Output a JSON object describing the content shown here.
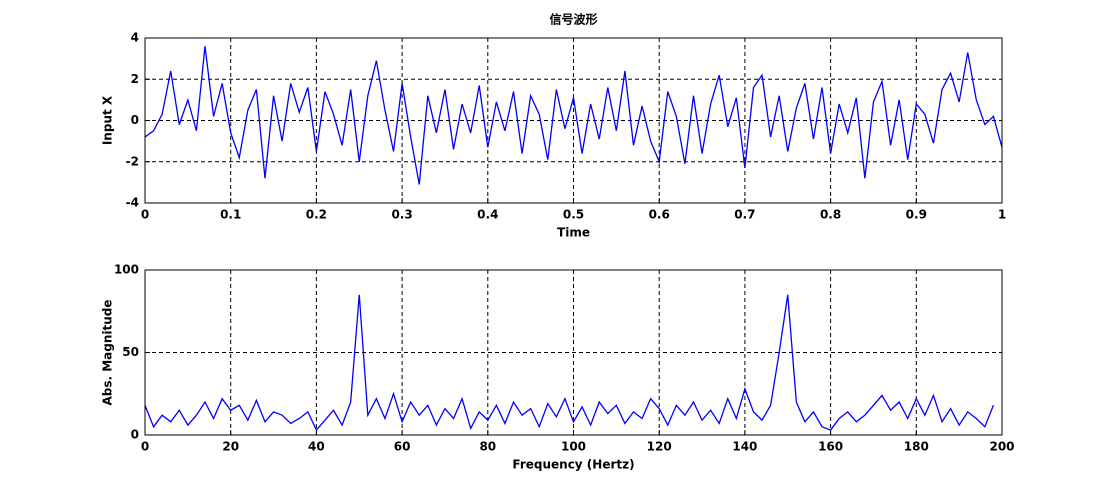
{
  "chart_data": [
    {
      "type": "line",
      "title": "信号波形",
      "xlabel": "Time",
      "ylabel": "Input X",
      "x": [
        0,
        0.01,
        0.02,
        0.03,
        0.04,
        0.05,
        0.06,
        0.07,
        0.08,
        0.09,
        0.1,
        0.11,
        0.12,
        0.13,
        0.14,
        0.15,
        0.16,
        0.17,
        0.18,
        0.19,
        0.2,
        0.21,
        0.22,
        0.23,
        0.24,
        0.25,
        0.26,
        0.27,
        0.28,
        0.29,
        0.3,
        0.31,
        0.32,
        0.33,
        0.34,
        0.35,
        0.36,
        0.37,
        0.38,
        0.39,
        0.4,
        0.41,
        0.42,
        0.43,
        0.44,
        0.45,
        0.46,
        0.47,
        0.48,
        0.49,
        0.5,
        0.51,
        0.52,
        0.53,
        0.54,
        0.55,
        0.56,
        0.57,
        0.58,
        0.59,
        0.6,
        0.61,
        0.62,
        0.63,
        0.64,
        0.65,
        0.66,
        0.67,
        0.68,
        0.69,
        0.7,
        0.71,
        0.72,
        0.73,
        0.74,
        0.75,
        0.76,
        0.77,
        0.78,
        0.79,
        0.8,
        0.81,
        0.82,
        0.83,
        0.84,
        0.85,
        0.86,
        0.87,
        0.88,
        0.89,
        0.9,
        0.91,
        0.92,
        0.93,
        0.94,
        0.95,
        0.96,
        0.97,
        0.98,
        0.99,
        1
      ],
      "series": [
        {
          "color": "#0000ff",
          "values": [
            -0.8,
            -0.5,
            0.3,
            2.4,
            -0.2,
            1.0,
            -0.5,
            3.6,
            0.2,
            1.8,
            -0.6,
            -1.8,
            0.5,
            1.5,
            -2.8,
            1.2,
            -1.0,
            1.8,
            0.4,
            1.6,
            -1.5,
            1.4,
            0.3,
            -1.2,
            1.5,
            -2.0,
            1.2,
            2.9,
            0.5,
            -1.5,
            1.8,
            -0.8,
            -3.1,
            1.2,
            -0.6,
            1.5,
            -1.4,
            0.8,
            -0.6,
            1.7,
            -1.3,
            0.9,
            -0.5,
            1.4,
            -1.6,
            1.2,
            0.3,
            -1.9,
            1.5,
            -0.4,
            1.1,
            -1.6,
            0.8,
            -0.9,
            1.6,
            -0.5,
            2.4,
            -1.2,
            0.7,
            -1.0,
            -2.0,
            1.4,
            0.2,
            -2.1,
            1.2,
            -1.6,
            0.8,
            2.2,
            -0.3,
            1.1,
            -2.3,
            1.6,
            2.2,
            -0.8,
            1.2,
            -1.5,
            0.6,
            1.8,
            -0.9,
            1.6,
            -1.6,
            0.8,
            -0.6,
            1.1,
            -2.8,
            0.9,
            1.9,
            -1.2,
            1.0,
            -1.9,
            0.8,
            0.3,
            -1.1,
            1.5,
            2.3,
            0.9,
            3.3,
            1.0,
            -0.2,
            0.2,
            -1.3
          ]
        }
      ],
      "xlim": [
        0,
        1
      ],
      "xticks": [
        0,
        0.1,
        0.2,
        0.3,
        0.4,
        0.5,
        0.6,
        0.7,
        0.8,
        0.9,
        1
      ],
      "ylim": [
        -4,
        4
      ],
      "yticks": [
        -4,
        -2,
        0,
        2,
        4
      ],
      "grid": true
    },
    {
      "type": "line",
      "xlabel": "Frequency (Hertz)",
      "ylabel": "Abs. Magnitude",
      "x": [
        0,
        2,
        4,
        6,
        8,
        10,
        12,
        14,
        16,
        18,
        20,
        22,
        24,
        26,
        28,
        30,
        32,
        34,
        36,
        38,
        40,
        42,
        44,
        46,
        48,
        50,
        52,
        54,
        56,
        58,
        60,
        62,
        64,
        66,
        68,
        70,
        72,
        74,
        76,
        78,
        80,
        82,
        84,
        86,
        88,
        90,
        92,
        94,
        96,
        98,
        100,
        102,
        104,
        106,
        108,
        110,
        112,
        114,
        116,
        118,
        120,
        122,
        124,
        126,
        128,
        130,
        132,
        134,
        136,
        138,
        140,
        142,
        144,
        146,
        148,
        150,
        152,
        154,
        156,
        158,
        160,
        162,
        164,
        166,
        168,
        170,
        172,
        174,
        176,
        178,
        180,
        182,
        184,
        186,
        188,
        190,
        192,
        194,
        196,
        198
      ],
      "series": [
        {
          "color": "#0000ff",
          "values": [
            18,
            5,
            12,
            8,
            15,
            6,
            12,
            20,
            10,
            22,
            15,
            18,
            9,
            21,
            8,
            14,
            12,
            7,
            10,
            14,
            3,
            9,
            15,
            6,
            20,
            85,
            12,
            22,
            10,
            25,
            8,
            20,
            12,
            18,
            6,
            16,
            10,
            22,
            4,
            14,
            9,
            18,
            7,
            20,
            12,
            16,
            5,
            19,
            11,
            22,
            8,
            17,
            6,
            20,
            13,
            18,
            7,
            14,
            10,
            22,
            16,
            6,
            18,
            12,
            20,
            9,
            15,
            7,
            22,
            10,
            28,
            14,
            9,
            18,
            50,
            85,
            20,
            8,
            14,
            5,
            3,
            10,
            14,
            8,
            12,
            18,
            24,
            15,
            20,
            10,
            22,
            12,
            24,
            8,
            16,
            6,
            14,
            10,
            5,
            18
          ]
        }
      ],
      "xlim": [
        0,
        200
      ],
      "xticks": [
        0,
        20,
        40,
        60,
        80,
        100,
        120,
        140,
        160,
        180,
        200
      ],
      "ylim": [
        0,
        100
      ],
      "yticks": [
        0,
        50,
        100
      ],
      "grid": true
    }
  ]
}
